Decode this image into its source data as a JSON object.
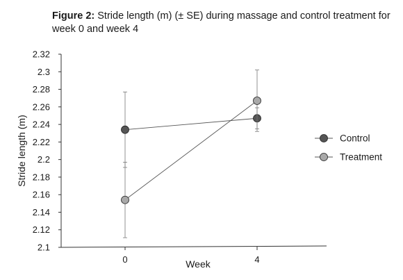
{
  "caption": {
    "label": "Figure 2:",
    "text": " Stride length (m) (± SE) during massage and control treatment for week 0 and week 4"
  },
  "chart_data": {
    "type": "line",
    "title": "",
    "xlabel": "Week",
    "ylabel": "Stride length (m)",
    "categories": [
      "0",
      "4"
    ],
    "ylim": [
      2.1,
      2.32
    ],
    "yticks": [
      2.1,
      2.12,
      2.14,
      2.16,
      2.18,
      2.2,
      2.22,
      2.24,
      2.26,
      2.28,
      2.3,
      2.32
    ],
    "ytick_labels": [
      "2.1",
      "2.12",
      "2.14",
      "2.16",
      "2.18",
      "2.2",
      "2.22",
      "2.24",
      "2.26",
      "2.28",
      "2.3",
      "2.32"
    ],
    "grid": false,
    "legend_position": "right",
    "series": [
      {
        "name": "Control",
        "values": [
          2.234,
          2.247
        ],
        "se": [
          0.043,
          0.012
        ],
        "marker_color": "#555555"
      },
      {
        "name": "Treatment",
        "values": [
          2.154,
          2.267
        ],
        "se": [
          0.043,
          0.035
        ],
        "marker_color": "#a9a9a9"
      }
    ]
  }
}
